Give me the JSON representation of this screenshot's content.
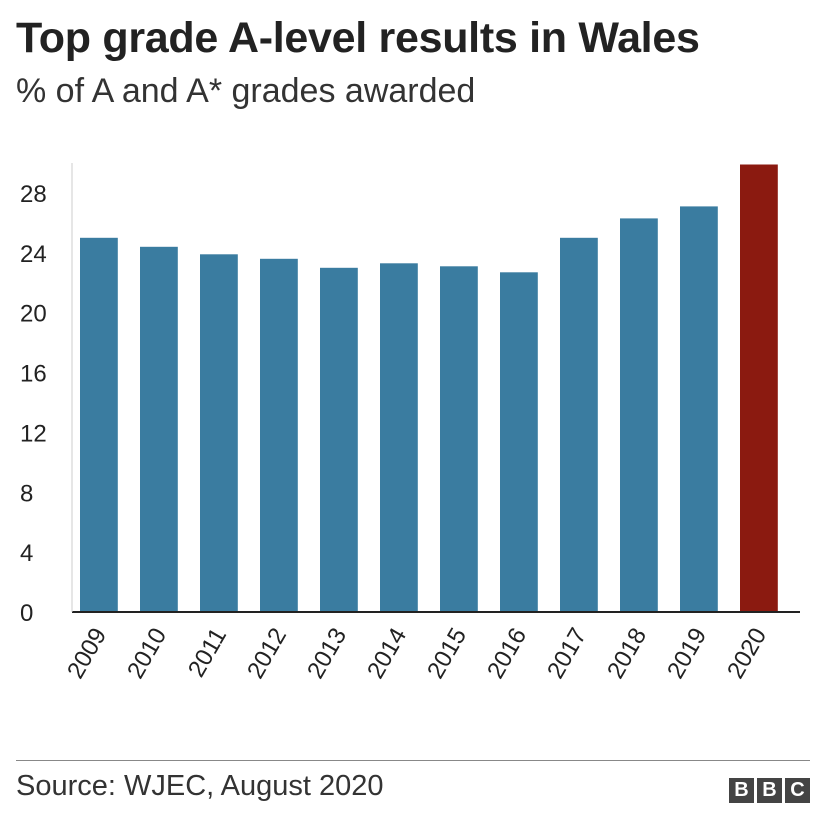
{
  "header": {
    "title": "Top grade A-level results in Wales",
    "subtitle": "% of A and A* grades awarded"
  },
  "footer": {
    "source": "Source: WJEC, August 2020",
    "logo": [
      "B",
      "B",
      "C"
    ]
  },
  "colors": {
    "bar": "#3a7ca0",
    "highlight": "#8b1a10",
    "axis": "#222222"
  },
  "chart_data": {
    "type": "bar",
    "categories": [
      "2009",
      "2010",
      "2011",
      "2012",
      "2013",
      "2014",
      "2015",
      "2016",
      "2017",
      "2018",
      "2019",
      "2020"
    ],
    "values": [
      25.0,
      24.4,
      23.9,
      23.6,
      23.0,
      23.3,
      23.1,
      22.7,
      25.0,
      26.3,
      27.1,
      29.9
    ],
    "highlight_category": "2020",
    "title": "Top grade A-level results in Wales",
    "subtitle": "% of A and A* grades awarded",
    "xlabel": "",
    "ylabel": "",
    "ylim": [
      0,
      30
    ],
    "yticks": [
      0,
      4,
      8,
      12,
      16,
      20,
      24,
      28
    ],
    "grid": false,
    "legend": "none"
  }
}
